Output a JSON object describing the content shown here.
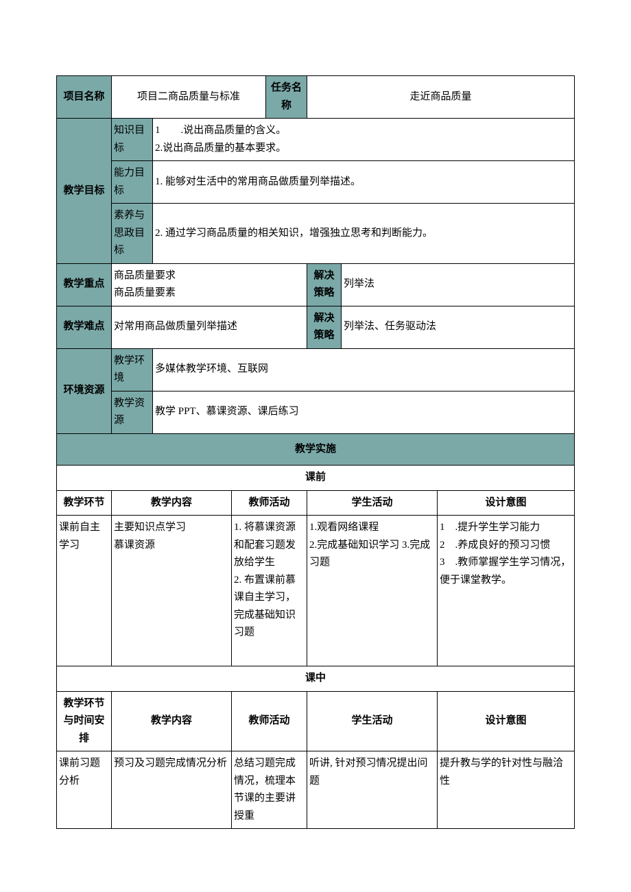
{
  "colors": {
    "teal": "#7aa9a8",
    "border": "#000000",
    "bg": "#ffffff"
  },
  "header": {
    "proj_name_label": "项目名称",
    "proj_name_value": "项目二商品质量与标准",
    "task_name_label": "任务名称",
    "task_name_value": "走近商品质量"
  },
  "goals": {
    "label": "教学目标",
    "row1_label": "知识目标",
    "row1_value": "1　　.说出商品质量的含义。\n2.说出商品质量的基本要求。",
    "row2_label": "能力目标",
    "row2_value": "1. 能够对生活中的常用商品做质量列举描述。",
    "row3_label": "素养与思政目标",
    "row3_value": "2. 通过学习商品质量的相关知识，增强独立思考和判断能力。"
  },
  "keypoint": {
    "label": "教学重点",
    "value": "商品质量要求\n商品质量要素",
    "strategy_label": "解决策略",
    "strategy_value": "列举法"
  },
  "difficulty": {
    "label": "教学难点",
    "value": "对常用商品做质量列举描述",
    "strategy_label": "解决策略",
    "strategy_value": "列举法、任务驱动法"
  },
  "env": {
    "label": "环境资源",
    "row1_label": "教学环境",
    "row1_value": "多媒体教学环境、互联网",
    "row2_label": "教学资源",
    "row2_value": "教学 PPT、慕课资源、课后练习"
  },
  "impl_title": "教学实施",
  "preclass": {
    "title": "课前",
    "h1": "教学环节",
    "h2": "教学内容",
    "h3": "教师活动",
    "h4": "学生活动",
    "h5": "设计意图",
    "c1": "课前自主学习",
    "c2": "主要知识点学习\n慕课资源",
    "c3": "1. 将慕课资源和配套习题发放给学生\n2. 布置课前慕课自主学习，完成基础知识习题",
    "c4": "1.观看网络课程\n2.完成基础知识学习 3.完成习题",
    "c5": "1　.提升学生学习能力\n2　.养成良好的预习习惯\n3　.教师掌握学生学习情况，便于课堂教学。"
  },
  "inclass": {
    "title": "课中",
    "h1": "教学环节与时间安排",
    "h2": "教学内容",
    "h3": "教师活动",
    "h4": "学生活动",
    "h5": "设计意图",
    "c1": "课前习题分析",
    "c2": "预习及习题完成情况分析",
    "c3": "总结习题完成情况，梳理本节课的主要讲授重",
    "c4": "听讲, 针对预习情况提出问题",
    "c5": "提升教与学的针对性与融洽性"
  }
}
